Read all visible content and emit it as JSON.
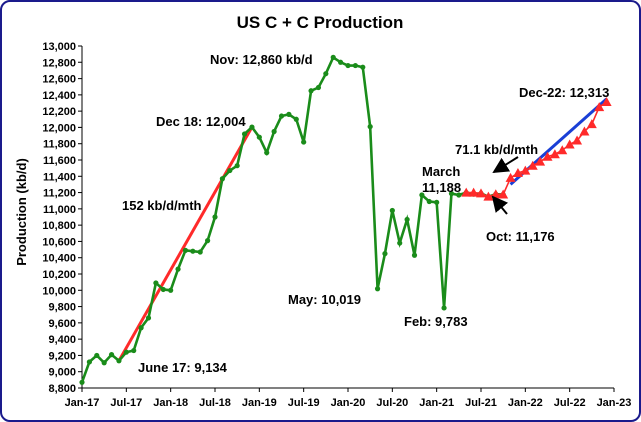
{
  "chart_data": {
    "type": "line",
    "title": "US C + C Production",
    "ylabel": "Production (kb/d)",
    "xlabel": "",
    "ylim": [
      8800,
      13000
    ],
    "yticks": [
      8800,
      9000,
      9200,
      9400,
      9600,
      9800,
      10000,
      10200,
      10400,
      10600,
      10800,
      11000,
      11200,
      11400,
      11600,
      11800,
      12000,
      12200,
      12400,
      12600,
      12800,
      13000
    ],
    "xticks": [
      "Jan-17",
      "Jul-17",
      "Jan-18",
      "Jul-18",
      "Jan-19",
      "Jul-19",
      "Jan-20",
      "Jul-20",
      "Jan-21",
      "Jul-21",
      "Jan-22",
      "Jul-22",
      "Jan-23"
    ],
    "grid": false,
    "legend": "none",
    "series": [
      {
        "color": "#1a8c1a",
        "marker": "circle",
        "x": [
          "2017-01",
          "2017-02",
          "2017-03",
          "2017-04",
          "2017-05",
          "2017-06",
          "2017-07",
          "2017-08",
          "2017-09",
          "2017-10",
          "2017-11",
          "2017-12",
          "2018-01",
          "2018-02",
          "2018-03",
          "2018-04",
          "2018-05",
          "2018-06",
          "2018-07",
          "2018-08",
          "2018-09",
          "2018-10",
          "2018-11",
          "2018-12",
          "2019-01",
          "2019-02",
          "2019-03",
          "2019-04",
          "2019-05",
          "2019-06",
          "2019-07",
          "2019-08",
          "2019-09",
          "2019-10",
          "2019-11",
          "2019-12",
          "2020-01",
          "2020-02",
          "2020-03",
          "2020-04",
          "2020-05",
          "2020-06",
          "2020-07",
          "2020-08",
          "2020-09",
          "2020-10",
          "2020-11",
          "2020-12",
          "2021-01",
          "2021-02",
          "2021-03",
          "2021-04",
          "2021-05",
          "2021-06",
          "2021-07",
          "2021-08",
          "2021-09",
          "2021-10"
        ],
        "values": [
          8870,
          9120,
          9200,
          9110,
          9210,
          9134,
          9240,
          9260,
          9540,
          9660,
          10090,
          10010,
          10000,
          10260,
          10490,
          10480,
          10470,
          10610,
          10900,
          11370,
          11470,
          11530,
          11920,
          12004,
          11880,
          11690,
          11950,
          12140,
          12160,
          12100,
          11820,
          12450,
          12490,
          12660,
          12860,
          12800,
          12760,
          12760,
          12740,
          12010,
          10019,
          10450,
          10980,
          10580,
          10870,
          10430,
          11170,
          11090,
          11080,
          9783,
          11188,
          11170,
          11200,
          11180,
          11190,
          11150,
          11180,
          11176
        ]
      },
      {
        "color": "#ff2a2a",
        "marker": "triangle",
        "x": [
          "2021-05",
          "2021-06",
          "2021-07",
          "2021-08",
          "2021-09",
          "2021-10",
          "2021-11",
          "2021-12",
          "2022-01",
          "2022-02",
          "2022-03",
          "2022-04",
          "2022-05",
          "2022-06",
          "2022-07",
          "2022-08",
          "2022-09",
          "2022-10",
          "2022-11",
          "2022-12"
        ],
        "values": [
          11200,
          11200,
          11190,
          11150,
          11180,
          11176,
          11380,
          11440,
          11470,
          11530,
          11580,
          11640,
          11670,
          11720,
          11790,
          11840,
          11950,
          12040,
          12250,
          12313
        ]
      }
    ],
    "trendlines": [
      {
        "color": "#ff2a2a",
        "x": [
          "2017-06",
          "2018-12"
        ],
        "values": [
          9134,
          12004
        ],
        "label": "152 kb/d/mth"
      },
      {
        "color": "#1a3fd6",
        "x": [
          "2021-11",
          "2022-12"
        ],
        "values": [
          11300,
          12350
        ],
        "label": "71.1 kb/d/mth"
      }
    ],
    "annotations": [
      {
        "text": "Nov: 12,860 kb/d"
      },
      {
        "text": "Dec 18: 12,004"
      },
      {
        "text": "152 kb/d/mth"
      },
      {
        "text": "June 17: 9,134"
      },
      {
        "text": "May: 10,019"
      },
      {
        "text": "March"
      },
      {
        "text": "11,188"
      },
      {
        "text": "Feb: 9,783"
      },
      {
        "text": "Oct: 11,176"
      },
      {
        "text": "71.1 kb/d/mth"
      },
      {
        "text": "Dec-22: 12,313"
      }
    ]
  }
}
